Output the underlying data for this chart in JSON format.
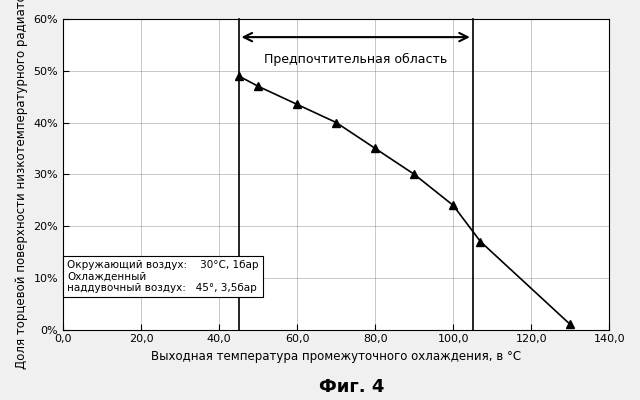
{
  "x_data": [
    45,
    50,
    60,
    70,
    80,
    90,
    100,
    107,
    130
  ],
  "y_data": [
    0.49,
    0.47,
    0.435,
    0.4,
    0.35,
    0.3,
    0.24,
    0.17,
    0.01
  ],
  "xlim": [
    0,
    140
  ],
  "ylim": [
    0,
    0.6
  ],
  "xticks": [
    0,
    20,
    40,
    60,
    80,
    100,
    120,
    140
  ],
  "xtick_labels": [
    "0,0",
    "20,0",
    "40,0",
    "60,0",
    "80,0",
    "100,0",
    "120,0",
    "140,0"
  ],
  "yticks": [
    0.0,
    0.1,
    0.2,
    0.3,
    0.4,
    0.5,
    0.6
  ],
  "ytick_labels": [
    "0%",
    "10%",
    "20%",
    "30%",
    "40%",
    "50%",
    "60%"
  ],
  "xlabel": "Выходная температура промежуточного охлаждения, в °C",
  "ylabel": "Доля торцевой поверхности низкотемпературного радиатора",
  "vline1_x": 45,
  "vline2_x": 105,
  "arrow_text": "Предпочтительная область",
  "annotation_line1": "Окружающий воздух:    30°C, 1бар",
  "annotation_line2": "Охлажденный",
  "annotation_line3": "наддувочный воздух:   45°, 3,5бар",
  "fig_label": "Фиг. 4",
  "line_color": "#000000",
  "marker": "^",
  "marker_size": 6,
  "background_color": "#f0f0f0",
  "plot_bg_color": "#ffffff"
}
